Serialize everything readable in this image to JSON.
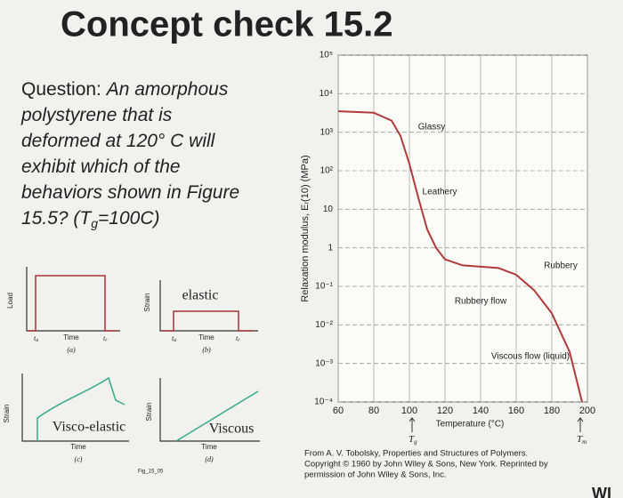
{
  "title": "Concept check 15.2",
  "question": {
    "label": "Question:",
    "lines": [
      "An amorphous",
      "polystyrene that is",
      "deformed at 120° C will",
      "exhibit which of the",
      "behaviors shown in Figure",
      "15.5? (T"
    ],
    "sub": "g",
    "tail": "=100C)"
  },
  "symbols": {
    "t": "t",
    "a": "a",
    "r": "r"
  },
  "panels": [
    {
      "axis": "Load",
      "time": "Time",
      "tag": "(a)"
    },
    {
      "axis": "Strain",
      "label": "elastic",
      "time": "Time",
      "tag": "(b)"
    },
    {
      "axis": "Strain",
      "label": "Visco-elastic",
      "time": "Time",
      "tag": "(c)"
    },
    {
      "axis": "Strain",
      "label": "Viscous",
      "time": "Time",
      "tag": "(d)"
    }
  ],
  "figure_id": "Fig_15_05",
  "chart_data": {
    "type": "line",
    "ylabel": "Relaxation modulus, Eᵣ(10) (MPa)",
    "xlabel": "Temperature (°C)",
    "xlim": [
      60,
      200
    ],
    "xticks": [
      60,
      80,
      100,
      120,
      140,
      160,
      180,
      200
    ],
    "yscale": "log",
    "ylim": [
      0.0001,
      100000
    ],
    "yticks": [
      {
        "value": 100000,
        "label": "10⁵"
      },
      {
        "value": 10000,
        "label": "10⁴"
      },
      {
        "value": 1000,
        "label": "10³"
      },
      {
        "value": 100,
        "label": "10²"
      },
      10,
      1,
      {
        "value": 0.1,
        "label": "10⁻¹"
      },
      {
        "value": 0.01,
        "label": "10⁻²"
      },
      {
        "value": 0.001,
        "label": "10⁻³"
      },
      {
        "value": 0.0001,
        "label": "10⁻⁴"
      }
    ],
    "grid": true,
    "x": [
      60,
      80,
      90,
      95,
      100,
      105,
      110,
      115,
      120,
      130,
      150,
      160,
      170,
      180,
      190,
      197
    ],
    "series": [
      {
        "color": "#b03a3a",
        "values": [
          3500,
          3200,
          2000,
          800,
          150,
          20,
          3,
          1,
          0.5,
          0.35,
          0.3,
          0.2,
          0.08,
          0.02,
          0.002,
          0.0001
        ]
      }
    ],
    "annotations": [
      "Glassy",
      "Leathery",
      "Rubbery",
      "Rubbery flow",
      "Viscous flow (liquid)"
    ],
    "markers": [
      {
        "t": "T",
        "sub": "g"
      },
      {
        "t": "T",
        "sub": "m"
      }
    ]
  },
  "credit": [
    "From A. V. Tobolsky, Properties and Structures of Polymers.",
    "Copyright © 1960 by John Wiley & Sons, New York. Reprinted by",
    "permission of John Wiley & Sons, Inc."
  ],
  "corner": "WI"
}
